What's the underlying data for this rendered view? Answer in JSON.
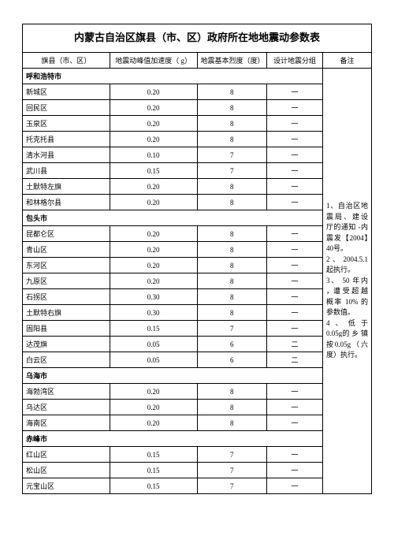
{
  "title": "内蒙古自治区旗县（市、区）政府所在地地震动参数表",
  "headers": {
    "c0": "旗县（市、区）",
    "c1": "地震动峰值加速度（ g）",
    "c2": "地震基本烈度（度）",
    "c3": "设计地震分组",
    "c4": "备注"
  },
  "notes": "1、自治区地震局、建设厅的通知 -内震发【2004】40号。\n2 、 2004.5.1起执行。\n3、 50 年内 ，遭 受 超 越 概率 10% 的 参数值。\n4、低于 0.05g的 乡 镇 按0.05g（六度）执行。",
  "sections": [
    {
      "name": "呼和浩特市",
      "rows": [
        {
          "n": "新城区",
          "a": "0.20",
          "b": "8",
          "g": "一"
        },
        {
          "n": "回民区",
          "a": "0.20",
          "b": "8",
          "g": "一"
        },
        {
          "n": "玉泉区",
          "a": "0.20",
          "b": "8",
          "g": "一"
        },
        {
          "n": "托克托县",
          "a": "0.20",
          "b": "8",
          "g": "一"
        },
        {
          "n": "清水河县",
          "a": "0.10",
          "b": "7",
          "g": "一"
        },
        {
          "n": "武川县",
          "a": "0.15",
          "b": "7",
          "g": "一"
        },
        {
          "n": "土默特左旗",
          "a": "0.20",
          "b": "8",
          "g": "一"
        },
        {
          "n": "和林格尔县",
          "a": "0.20",
          "b": "8",
          "g": "一"
        }
      ]
    },
    {
      "name": "包头市",
      "rows": [
        {
          "n": "昆都仑区",
          "a": "0.20",
          "b": "8",
          "g": "一"
        },
        {
          "n": "青山区",
          "a": "0.20",
          "b": "8",
          "g": "一"
        },
        {
          "n": "东河区",
          "a": "0.20",
          "b": "8",
          "g": "一"
        },
        {
          "n": "九原区",
          "a": "0.20",
          "b": "8",
          "g": "一"
        },
        {
          "n": "石拐区",
          "a": "0.30",
          "b": "8",
          "g": "一"
        },
        {
          "n": "土默特右旗",
          "a": "0.30",
          "b": "8",
          "g": "一"
        },
        {
          "n": "固阳县",
          "a": "0.15",
          "b": "7",
          "g": "一"
        },
        {
          "n": "达茂旗",
          "a": "0.05",
          "b": "6",
          "g": "二"
        },
        {
          "n": "白云区",
          "a": "0.05",
          "b": "6",
          "g": "二"
        }
      ]
    },
    {
      "name": "乌海市",
      "rows": [
        {
          "n": "海勃湾区",
          "a": "0.20",
          "b": "8",
          "g": "一"
        },
        {
          "n": "乌达区",
          "a": "0.20",
          "b": "8",
          "g": "一"
        },
        {
          "n": "海南区",
          "a": "0.20",
          "b": "8",
          "g": "一"
        }
      ]
    },
    {
      "name": "赤峰市",
      "rows": [
        {
          "n": "红山区",
          "a": "0.15",
          "b": "7",
          "g": "一"
        },
        {
          "n": "松山区",
          "a": "0.15",
          "b": "7",
          "g": "一"
        },
        {
          "n": "元宝山区",
          "a": "0.15",
          "b": "7",
          "g": "一"
        }
      ]
    }
  ]
}
